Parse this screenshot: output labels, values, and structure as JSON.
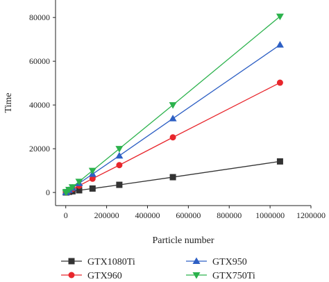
{
  "chart_data": {
    "type": "line",
    "title": "",
    "xlabel": "Particle number",
    "ylabel": "Time",
    "xlim": [
      -50000,
      1200000
    ],
    "ylim": [
      -6000,
      88000
    ],
    "xticks": [
      0,
      200000,
      400000,
      600000,
      800000,
      1000000,
      1200000
    ],
    "yticks": [
      0,
      20000,
      40000,
      60000,
      80000
    ],
    "x": [
      1024,
      4096,
      16384,
      32768,
      65536,
      131072,
      262144,
      524288,
      1048576
    ],
    "grid": false,
    "legend_position": "bottom",
    "series": [
      {
        "name": "GTX1080Ti",
        "color": "#333333",
        "marker": "square",
        "values": [
          20,
          80,
          300,
          550,
          1000,
          1800,
          3500,
          7000,
          14200
        ]
      },
      {
        "name": "GTX960",
        "color": "#e8262c",
        "marker": "circle",
        "values": [
          50,
          200,
          800,
          1600,
          3100,
          6300,
          12500,
          25200,
          50200
        ]
      },
      {
        "name": "GTX950",
        "color": "#2d5fc4",
        "marker": "triangle-up",
        "values": [
          70,
          270,
          1100,
          2100,
          4200,
          8400,
          16800,
          33800,
          67500
        ]
      },
      {
        "name": "GTX750Ti",
        "color": "#2bb24c",
        "marker": "triangle-down",
        "values": [
          80,
          320,
          1300,
          2500,
          5000,
          10000,
          20000,
          40000,
          80500
        ]
      }
    ]
  }
}
